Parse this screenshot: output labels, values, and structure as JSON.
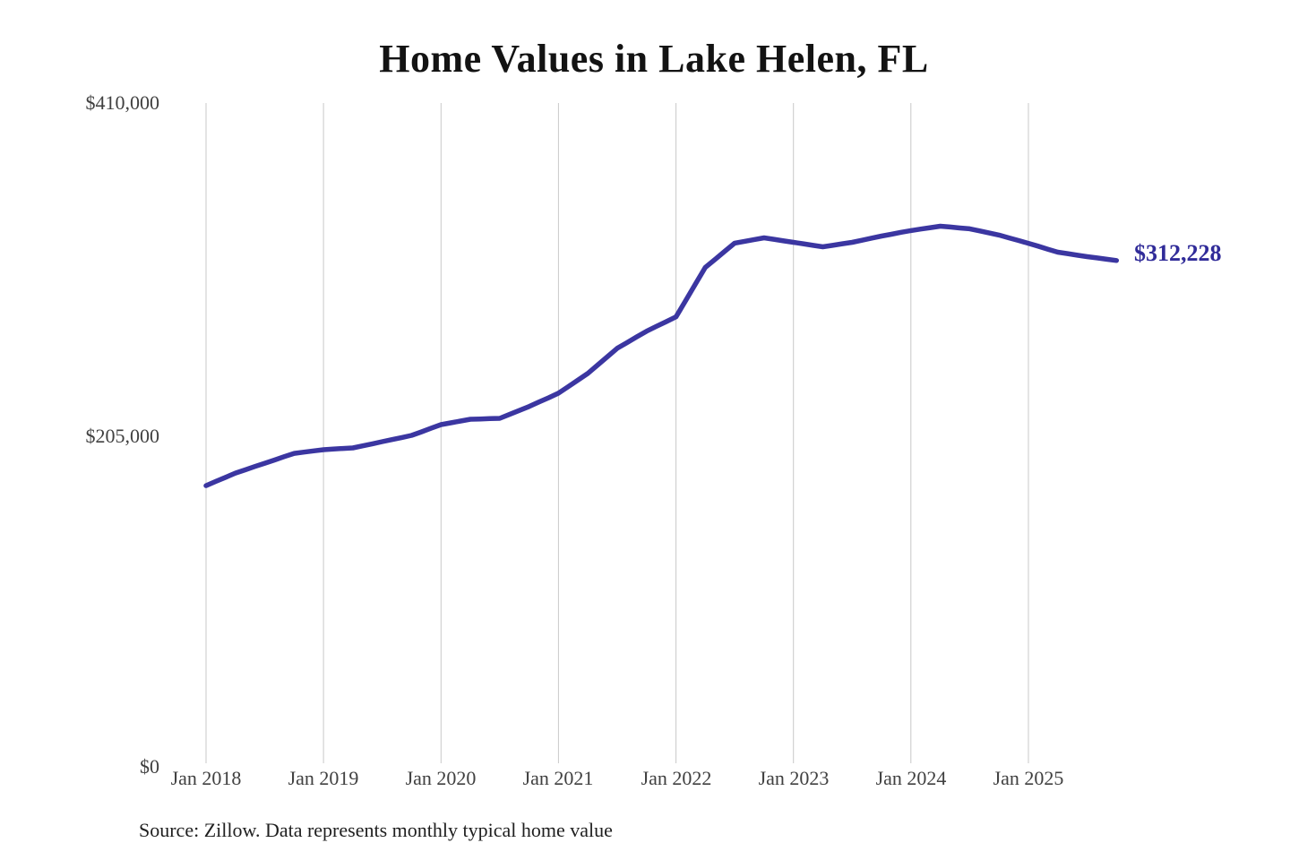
{
  "colors": {
    "line": "#3b36a1",
    "end_label": "#312c99",
    "grid": "#c8c8c8",
    "axis_text": "#404040",
    "title_text": "#131313"
  },
  "header": {
    "title": "Home Values in Lake Helen, FL"
  },
  "footer": {
    "source_note": "Source: Zillow. Data represents monthly typical home value"
  },
  "end_label": "$312,228",
  "chart_data": {
    "type": "line",
    "title": "Home Values in Lake Helen, FL",
    "xlabel": "",
    "ylabel": "",
    "ylim": [
      0,
      410000
    ],
    "grid": "vertical-only",
    "legend": "none",
    "x_tick_labels": [
      "Jan 2018",
      "Jan 2019",
      "Jan 2020",
      "Jan 2021",
      "Jan 2022",
      "Jan 2023",
      "Jan 2024",
      "Jan 2025"
    ],
    "y_tick_labels": [
      "$410,000",
      "$205,000",
      "$0"
    ],
    "y_tick_values": [
      410000,
      205000,
      0
    ],
    "frequency": "monthly",
    "x_start": "Jan 2018",
    "x_end": "Oct 2025",
    "months_per_tick": 12,
    "last_value": 312228,
    "last_value_label": "$312,228",
    "series": [
      {
        "name": "Typical home value",
        "values": [
          172400,
          175000,
          177600,
          180200,
          182200,
          184300,
          186300,
          188300,
          190400,
          192400,
          193200,
          194000,
          194700,
          195100,
          195500,
          195800,
          197100,
          198400,
          199700,
          201000,
          202300,
          203600,
          205800,
          208100,
          210300,
          211400,
          212500,
          213600,
          213800,
          214000,
          214200,
          216600,
          219100,
          221500,
          224300,
          227000,
          229800,
          233900,
          238000,
          242100,
          247300,
          252500,
          257700,
          261200,
          264800,
          268300,
          271300,
          274200,
          277200,
          287400,
          297700,
          307900,
          312900,
          318000,
          323000,
          324100,
          325200,
          326300,
          325400,
          324400,
          323500,
          322600,
          321600,
          320700,
          321600,
          322600,
          323500,
          324800,
          326100,
          327400,
          328500,
          329700,
          330800,
          331700,
          332600,
          333500,
          333000,
          332400,
          331900,
          330600,
          329300,
          328000,
          326300,
          324600,
          322900,
          321100,
          319200,
          317400,
          316500,
          315500,
          314600,
          313800,
          313000,
          312228
        ]
      }
    ]
  }
}
